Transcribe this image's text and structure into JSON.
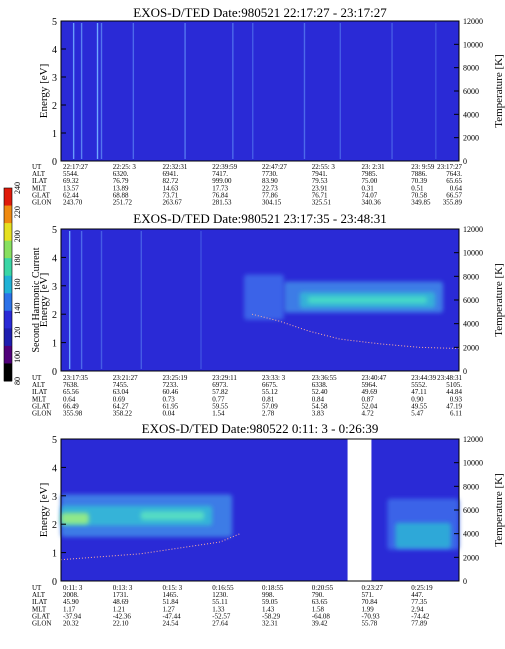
{
  "panels": [
    {
      "title": "EXOS-D/TED   Date:980521  22:17:27 - 23:17:27",
      "background": "#2a2ad6",
      "row_labels": [
        "UT",
        "ALT",
        "ILAT",
        "MLT",
        "GLAT",
        "GLON"
      ],
      "columns": [
        [
          "22:17:27",
          "5544.",
          "69.32",
          "13.57",
          "62.44",
          "243.70"
        ],
        [
          "22:25: 3",
          "6320.",
          "76.79",
          "13.89",
          "68.88",
          "251.72"
        ],
        [
          "22:32:31",
          "6941.",
          "82.72",
          "14.63",
          "73.71",
          "263.67"
        ],
        [
          "22:39:59",
          "7417.",
          "999.00",
          "17.73",
          "76.84",
          "281.53"
        ],
        [
          "22:47:27",
          "7730.",
          "83.90",
          "22.73",
          "77.86",
          "304.15"
        ],
        [
          "22:55: 3",
          "7941.",
          "79.53",
          "23.91",
          "76.71",
          "325.51"
        ],
        [
          "23: 2:31",
          "7985.",
          "75.00",
          "0.31",
          "74.07",
          "340.36"
        ],
        [
          "23: 9:59",
          "7886.",
          "70.39",
          "0.51",
          "70.58",
          "349.85"
        ],
        [
          "23:17:27",
          "7643.",
          "65.65",
          "0.64",
          "66.57",
          "355.89"
        ]
      ],
      "features": {
        "streaks": [
          [
            0.03,
            0.9
          ],
          [
            0.05,
            0.7
          ],
          [
            0.09,
            1.0
          ],
          [
            0.1,
            0.6
          ],
          [
            0.18,
            0.5
          ],
          [
            0.31,
            0.6
          ],
          [
            0.43,
            0.5
          ],
          [
            0.48,
            0.4
          ],
          [
            0.61,
            0.5
          ],
          [
            0.7,
            0.4
          ],
          [
            0.83,
            0.4
          ],
          [
            0.94,
            0.3
          ]
        ]
      }
    },
    {
      "title": "EXOS-D/TED   Date:980521  23:17:35 - 23:48:31",
      "background": "#2a2ad6",
      "row_labels": [
        "UT",
        "ALT",
        "ILAT",
        "MLT",
        "GLAT",
        "GLON"
      ],
      "columns": [
        [
          "23:17:35",
          "7638.",
          "65.56",
          "0.64",
          "66.49",
          "355.98"
        ],
        [
          "23:21:27",
          "7455.",
          "63.04",
          "0.69",
          "64.27",
          "358.22"
        ],
        [
          "23:25:19",
          "7233.",
          "60.46",
          "0.73",
          "61.95",
          "0.04"
        ],
        [
          "23:29:11",
          "6973.",
          "57.82",
          "0.77",
          "59.55",
          "1.54"
        ],
        [
          "23:33: 3",
          "6675.",
          "55.12",
          "0.81",
          "57.09",
          "2.78"
        ],
        [
          "23:36:55",
          "6338.",
          "52.40",
          "0.84",
          "54.58",
          "3.83"
        ],
        [
          "23:40:47",
          "5964.",
          "49.69",
          "0.87",
          "52.04",
          "4.72"
        ],
        [
          "23:44:39",
          "5552.",
          "47.11",
          "0.90",
          "49.55",
          "5.47"
        ],
        [
          "23:48:31",
          "5105.",
          "44.84",
          "0.93",
          "47.19",
          "6.11"
        ]
      ],
      "features": {
        "bands": [
          {
            "x0": 0.46,
            "x1": 0.56,
            "e_center": 2.6,
            "e_half": 0.8,
            "color": "#3a64e8"
          },
          {
            "x0": 0.56,
            "x1": 0.96,
            "e_center": 2.6,
            "e_half": 0.55,
            "color": "#3c7be6"
          },
          {
            "x0": 0.6,
            "x1": 0.94,
            "e_center": 2.5,
            "e_half": 0.28,
            "color": "#35b0d8"
          },
          {
            "x0": 0.62,
            "x1": 0.92,
            "e_center": 2.5,
            "e_half": 0.12,
            "color": "#46d8c8"
          }
        ],
        "streaks": [
          [
            0.02,
            1.0
          ],
          [
            0.05,
            0.5
          ],
          [
            0.1,
            0.4
          ],
          [
            0.2,
            0.4
          ],
          [
            0.35,
            0.3
          ]
        ],
        "temperature_curve": [
          [
            0.48,
            4800
          ],
          [
            0.55,
            4200
          ],
          [
            0.62,
            3400
          ],
          [
            0.7,
            2700
          ],
          [
            0.8,
            2300
          ],
          [
            0.9,
            2000
          ],
          [
            1.0,
            1900
          ]
        ]
      }
    },
    {
      "title": "EXOS-D/TED   Date:980522  0:11: 3 - 0:26:39",
      "background": "#2a2ad6",
      "row_labels": [
        "UT",
        "ALT",
        "ILAT",
        "MLT",
        "GLAT",
        "GLON"
      ],
      "columns": [
        [
          "0:11: 3",
          "2008.",
          "45.90",
          "1.17",
          "-37.94",
          "20.32"
        ],
        [
          "0:13: 3",
          "1731.",
          "48.69",
          "1.21",
          "-42.36",
          "22.10"
        ],
        [
          "0:15: 3",
          "1465.",
          "51.84",
          "1.27",
          "-47.44",
          "24.54"
        ],
        [
          "0:16:55",
          "1230.",
          "55.11",
          "1.33",
          "-52.57",
          "27.64"
        ],
        [
          "0:18:55",
          "998.",
          "59.05",
          "1.43",
          "-58.29",
          "32.31"
        ],
        [
          "0:20:55",
          "790.",
          "63.65",
          "1.58",
          "-64.08",
          "39.42"
        ],
        [
          "0:23:27",
          "571.",
          "70.84",
          "1.99",
          "-70.93",
          "55.78"
        ],
        [
          "0:25:19",
          "447.",
          "77.35",
          "2.94",
          "-74.42",
          "77.89"
        ]
      ],
      "features": {
        "bands": [
          {
            "x0": 0.0,
            "x1": 0.43,
            "e_center": 2.3,
            "e_half": 0.75,
            "color": "#3c7be6"
          },
          {
            "x0": 0.0,
            "x1": 0.38,
            "e_center": 2.3,
            "e_half": 0.35,
            "color": "#34b3d8"
          },
          {
            "x0": 0.0,
            "x1": 0.07,
            "e_center": 2.2,
            "e_half": 0.2,
            "color": "#8fe88a"
          },
          {
            "x0": 0.2,
            "x1": 0.36,
            "e_center": 2.3,
            "e_half": 0.15,
            "color": "#55dcc4"
          },
          {
            "x0": 0.82,
            "x1": 1.0,
            "e_center": 2.0,
            "e_half": 0.9,
            "color": "#3a64e8"
          },
          {
            "x0": 0.84,
            "x1": 0.98,
            "e_center": 1.6,
            "e_half": 0.45,
            "color": "#2fa8d8"
          }
        ],
        "gap": {
          "x0": 0.72,
          "x1": 0.78
        },
        "temperature_curve": [
          [
            0.0,
            1800
          ],
          [
            0.2,
            2300
          ],
          [
            0.4,
            3300
          ],
          [
            0.45,
            4000
          ]
        ]
      }
    }
  ],
  "axes": {
    "energy_label": "Energy [eV]",
    "energy_ticks": [
      "0",
      "1",
      "2",
      "3",
      "4",
      "5"
    ],
    "energy_range": [
      0,
      5
    ],
    "temperature_label": "Temperature [K]",
    "temperature_ticks": [
      "0",
      "2000",
      "4000",
      "6000",
      "8000",
      "10000",
      "12000"
    ],
    "temperature_range": [
      0,
      12000
    ]
  },
  "colorbar": {
    "label": "Second Harmonic Current",
    "ticks": [
      "80",
      "100",
      "120",
      "140",
      "160",
      "180",
      "200",
      "220",
      "240"
    ],
    "colors": [
      "#000000",
      "#50007a",
      "#1e1eb0",
      "#2a2ad6",
      "#2c72e8",
      "#20b2d6",
      "#3ad6a6",
      "#88e060",
      "#e6e020",
      "#f08a10",
      "#e01a0a"
    ]
  },
  "chart_data": [
    {
      "type": "heatmap",
      "title": "EXOS-D/TED   Date:980521  22:17:27 - 23:17:27",
      "ylabel": "Energy [eV]",
      "ylim": [
        0,
        5
      ],
      "y2label": "Temperature [K]",
      "y2lim": [
        0,
        12000
      ],
      "x": [
        "22:17:27",
        "22:25: 3",
        "22:32:31",
        "22:39:59",
        "22:47:27",
        "22:55: 3",
        "23: 2:31",
        "23: 9:59",
        "23:17:27"
      ],
      "colorbar": {
        "label": "Second Harmonic Current",
        "range": [
          80,
          240
        ]
      }
    },
    {
      "type": "heatmap",
      "title": "EXOS-D/TED   Date:980521  23:17:35 - 23:48:31",
      "ylabel": "Energy [eV]",
      "ylim": [
        0,
        5
      ],
      "y2label": "Temperature [K]",
      "y2lim": [
        0,
        12000
      ],
      "x": [
        "23:17:35",
        "23:21:27",
        "23:25:19",
        "23:29:11",
        "23:33: 3",
        "23:36:55",
        "23:40:47",
        "23:44:39",
        "23:48:31"
      ],
      "colorbar": {
        "label": "Second Harmonic Current",
        "range": [
          80,
          240
        ]
      }
    },
    {
      "type": "heatmap",
      "title": "EXOS-D/TED   Date:980522  0:11: 3 - 0:26:39",
      "ylabel": "Energy [eV]",
      "ylim": [
        0,
        5
      ],
      "y2label": "Temperature [K]",
      "y2lim": [
        0,
        12000
      ],
      "x": [
        "0:11: 3",
        "0:13: 3",
        "0:15: 3",
        "0:16:55",
        "0:18:55",
        "0:20:55",
        "0:23:27",
        "0:25:19"
      ],
      "colorbar": {
        "label": "Second Harmonic Current",
        "range": [
          80,
          240
        ]
      }
    }
  ]
}
